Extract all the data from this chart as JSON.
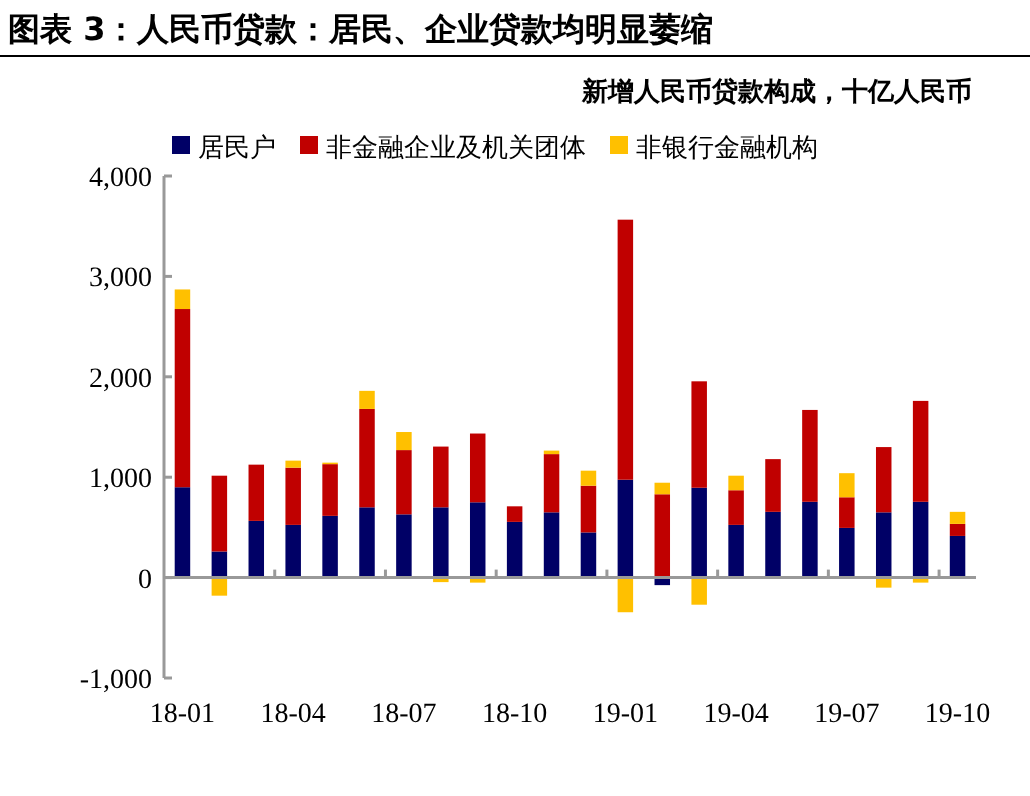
{
  "chart_data": {
    "type": "bar",
    "stacked": true,
    "title": "图表 3：人民币贷款：居民、企业贷款均明显萎缩",
    "subtitle": "新增人民币贷款构成，十亿人民币",
    "categories": [
      "18-01",
      null,
      null,
      "18-04",
      null,
      null,
      "18-07",
      null,
      null,
      "18-10",
      null,
      null,
      "19-01",
      null,
      null,
      "19-04",
      null,
      null,
      "19-07",
      null,
      null,
      "19-10"
    ],
    "series": [
      {
        "name": "居民户",
        "color": "#000066",
        "values": [
          900,
          260,
          565,
          525,
          615,
          700,
          630,
          700,
          750,
          555,
          650,
          450,
          975,
          -75,
          895,
          525,
          655,
          755,
          495,
          650,
          755,
          415
        ]
      },
      {
        "name": "非金融企业及机关团体",
        "color": "#c00000",
        "values": [
          1775,
          755,
          560,
          570,
          515,
          980,
          640,
          605,
          685,
          155,
          580,
          465,
          2590,
          830,
          1060,
          345,
          525,
          915,
          305,
          650,
          1005,
          120
        ]
      },
      {
        "name": "非银行金融机构",
        "color": "#ffc000",
        "values": [
          195,
          -180,
          null,
          70,
          15,
          180,
          180,
          -45,
          -50,
          null,
          35,
          150,
          -345,
          115,
          -270,
          145,
          null,
          null,
          240,
          -100,
          -50,
          120
        ]
      }
    ],
    "ylim": [
      -1000,
      4000
    ],
    "yticks": [
      {
        "value": -1000,
        "label": "-1,000"
      },
      0,
      {
        "value": 1000,
        "label": "1,000"
      },
      {
        "value": 2000,
        "label": "2,000"
      },
      {
        "value": 3000,
        "label": "3,000"
      },
      {
        "value": 4000,
        "label": "4,000"
      }
    ],
    "legend": "top left"
  }
}
